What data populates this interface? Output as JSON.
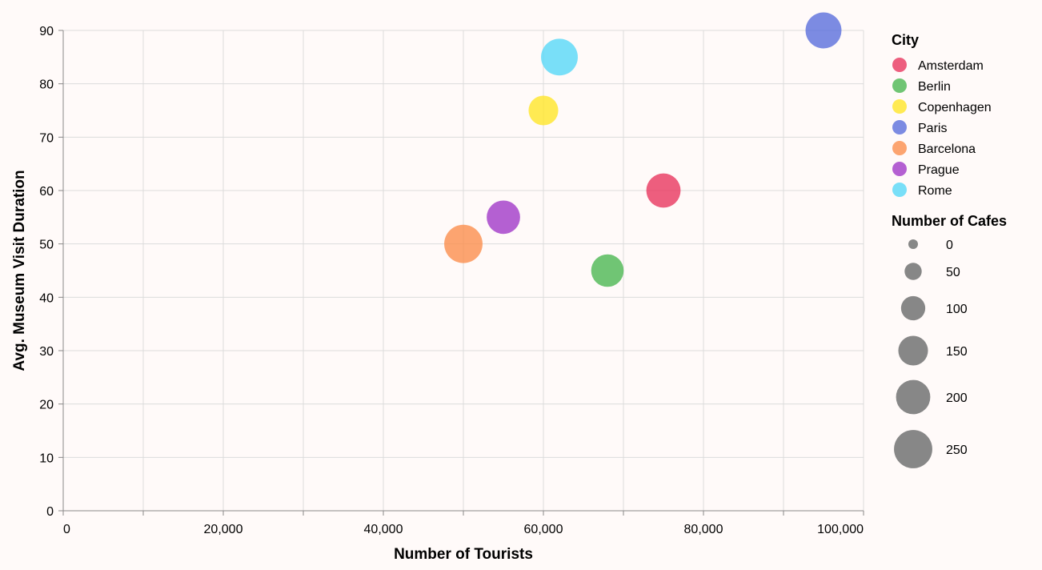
{
  "chart_data": {
    "type": "scatter",
    "xlabel": "Number of Tourists",
    "ylabel": "Avg. Museum Visit Duration",
    "xlim": [
      0,
      100000
    ],
    "ylim": [
      0,
      90
    ],
    "x_ticks": [
      0,
      20000,
      40000,
      60000,
      80000,
      100000
    ],
    "x_tick_labels": [
      "0",
      "20,000",
      "40,000",
      "60,000",
      "80,000",
      "100,000"
    ],
    "y_ticks": [
      0,
      10,
      20,
      30,
      40,
      50,
      60,
      70,
      80,
      90
    ],
    "y_tick_labels": [
      "0",
      "10",
      "20",
      "30",
      "40",
      "50",
      "60",
      "70",
      "80",
      "90"
    ],
    "grid": true,
    "legend_placement": "right",
    "color_legend_title": "City",
    "size_legend_title": "Number of Cafes",
    "size_legend_values": [
      0,
      50,
      100,
      150,
      200,
      250
    ],
    "size_legend_labels": [
      "0",
      "50",
      "100",
      "150",
      "200",
      "250"
    ],
    "points": [
      {
        "city": "Amsterdam",
        "tourists": 75000,
        "duration": 60,
        "cafes": 200,
        "color": "#e8375f"
      },
      {
        "city": "Berlin",
        "tourists": 68000,
        "duration": 45,
        "cafes": 180,
        "color": "#4cb852"
      },
      {
        "city": "Copenhagen",
        "tourists": 60000,
        "duration": 75,
        "cafes": 150,
        "color": "#ffe629"
      },
      {
        "city": "Paris",
        "tourists": 95000,
        "duration": 90,
        "cafes": 220,
        "color": "#5b6fdc"
      },
      {
        "city": "Barcelona",
        "tourists": 50000,
        "duration": 50,
        "cafes": 250,
        "color": "#fb8f4e"
      },
      {
        "city": "Prague",
        "tourists": 55000,
        "duration": 55,
        "cafes": 190,
        "color": "#a13ac8"
      },
      {
        "city": "Rome",
        "tourists": 62000,
        "duration": 85,
        "cafes": 230,
        "color": "#58d8f7"
      }
    ],
    "legend_swatch_color": "#7a7a7a"
  }
}
